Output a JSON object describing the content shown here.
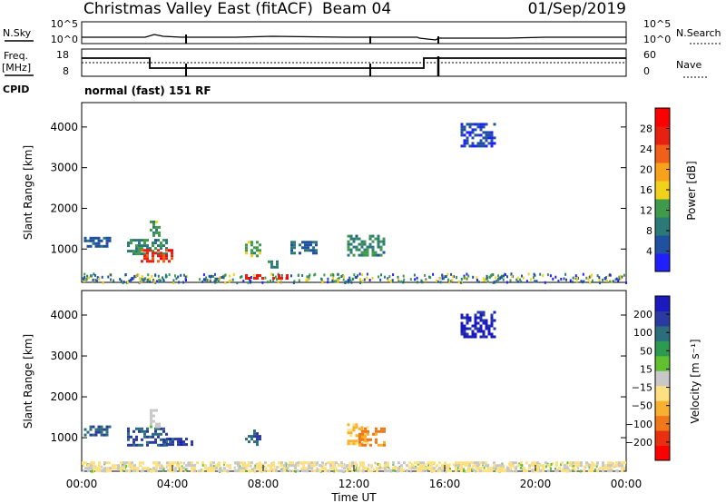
{
  "header": {
    "station": "Christmas Valley East (fitACF)",
    "beam": "Beam 04",
    "date": "01/Sep/2019"
  },
  "top_panels": {
    "nsky_label": "N.Sky",
    "nsky_ticks": [
      "10^5",
      "10^0"
    ],
    "nsearch_label": "N.Search",
    "freq_label": "Freq.",
    "freq_unit": "[MHz]",
    "freq_ticks": [
      "18",
      "8"
    ],
    "nave_label": "Nave",
    "nave_ticks": [
      "60",
      "0"
    ],
    "cpid_label": "CPID",
    "cpid_text": "normal (fast) 151 RF"
  },
  "colors": {
    "scale_power": [
      "#2020ff",
      "#2050a0",
      "#2c7a78",
      "#3f9a4a",
      "#f2d11a",
      "#f7a21a",
      "#f06018",
      "#e82010",
      "#ff0000"
    ],
    "scale_velocity": [
      "#ff0000",
      "#e83010",
      "#f07818",
      "#f7b030",
      "#ffe080",
      "#c8c8c8",
      "#60c030",
      "#2c9a50",
      "#2c6e7c",
      "#2a3aa0",
      "#1a1ac0"
    ]
  },
  "chart_data": [
    {
      "type": "heatmap",
      "name": "power",
      "ylabel": "Slant Range [km]",
      "y_ticks": [
        1000,
        2000,
        3000,
        4000
      ],
      "ylim": [
        180,
        4600
      ],
      "xlim": [
        0,
        24
      ],
      "colorbar_label": "Power [dB]",
      "colorbar_ticks": [
        "28",
        "24",
        "20",
        "16",
        "12",
        "8",
        "4"
      ],
      "colorbar_range": [
        0,
        32
      ],
      "patches": [
        {
          "x": [
            0.1,
            1.2
          ],
          "y": [
            1050,
            1300
          ],
          "value": 6
        },
        {
          "x": [
            2.0,
            3.8
          ],
          "y": [
            850,
            1250
          ],
          "value": 10
        },
        {
          "x": [
            2.6,
            4.0
          ],
          "y": [
            700,
            1000
          ],
          "value": 26
        },
        {
          "x": [
            3.0,
            3.4
          ],
          "y": [
            1300,
            1700
          ],
          "value": 12
        },
        {
          "x": [
            7.2,
            7.9
          ],
          "y": [
            850,
            1200
          ],
          "value": 13
        },
        {
          "x": [
            8.2,
            8.6
          ],
          "y": [
            560,
            720
          ],
          "value": 10
        },
        {
          "x": [
            9.2,
            10.3
          ],
          "y": [
            900,
            1200
          ],
          "value": 7
        },
        {
          "x": [
            11.7,
            13.3
          ],
          "y": [
            850,
            1350
          ],
          "value": 10
        },
        {
          "x": [
            7.2,
            9.2
          ],
          "y": [
            250,
            380
          ],
          "value": 28
        },
        {
          "x": [
            16.7,
            18.2
          ],
          "y": [
            3500,
            4100
          ],
          "value": 4
        }
      ]
    },
    {
      "type": "heatmap",
      "name": "velocity",
      "ylabel": "Slant Range [km]",
      "y_ticks": [
        1000,
        2000,
        3000,
        4000
      ],
      "ylim": [
        180,
        4600
      ],
      "xlim": [
        0,
        24
      ],
      "xlabel": "Time UT",
      "x_ticks": [
        "00:00",
        "04:00",
        "08:00",
        "12:00",
        "16:00",
        "20:00",
        "00:00"
      ],
      "colorbar_label": "Velocity [m s⁻¹]",
      "colorbar_ticks": [
        "200",
        "100",
        "50",
        "15",
        "−15",
        "−50",
        "−100",
        "−200"
      ],
      "colorbar_range": [
        -250,
        250
      ],
      "patches": [
        {
          "x": [
            0.1,
            1.2
          ],
          "y": [
            1050,
            1300
          ],
          "value": 150
        },
        {
          "x": [
            2.0,
            3.8
          ],
          "y": [
            850,
            1250
          ],
          "value": 160
        },
        {
          "x": [
            3.6,
            4.9
          ],
          "y": [
            850,
            1000
          ],
          "value": 180
        },
        {
          "x": [
            3.0,
            3.4
          ],
          "y": [
            1300,
            1700
          ],
          "value": 0
        },
        {
          "x": [
            7.2,
            7.9
          ],
          "y": [
            850,
            1200
          ],
          "value": 150
        },
        {
          "x": [
            11.7,
            12.6
          ],
          "y": [
            850,
            1350
          ],
          "value": -80
        },
        {
          "x": [
            12.2,
            13.3
          ],
          "y": [
            850,
            1250
          ],
          "value": -120
        },
        {
          "x": [
            16.7,
            18.2
          ],
          "y": [
            3500,
            4100
          ],
          "value": 220
        },
        {
          "x": [
            0.0,
            24.0
          ],
          "y": [
            200,
            420
          ],
          "value": -30
        }
      ]
    }
  ]
}
